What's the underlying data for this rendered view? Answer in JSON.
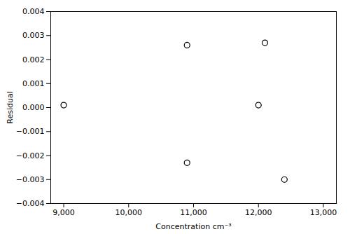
{
  "chart_data": {
    "type": "scatter",
    "x": [
      9000,
      10900,
      10900,
      12000,
      12100,
      12400
    ],
    "values": [
      0.0001,
      0.0026,
      -0.0023,
      0.0001,
      0.0027,
      -0.003
    ],
    "xlabel": "Concentration cm⁻³",
    "ylabel": "Residual",
    "xlim": [
      8800,
      13200
    ],
    "ylim": [
      -0.004,
      0.004
    ],
    "xticks": [
      {
        "value": 9000,
        "label": "9,000"
      },
      {
        "value": 10000,
        "label": "10,000"
      },
      {
        "value": 11000,
        "label": "11,000"
      },
      {
        "value": 12000,
        "label": "12,000"
      },
      {
        "value": 13000,
        "label": "13,000"
      }
    ],
    "yticks": [
      {
        "value": -0.004,
        "label": "−0.004"
      },
      {
        "value": -0.003,
        "label": "−0.003"
      },
      {
        "value": -0.002,
        "label": "−0.002"
      },
      {
        "value": -0.001,
        "label": "−0.001"
      },
      {
        "value": 0,
        "label": "0.000"
      },
      0.001,
      0.002,
      0.003,
      0.004
    ],
    "color": "#000000",
    "marker": "open_circle",
    "grid": false
  }
}
